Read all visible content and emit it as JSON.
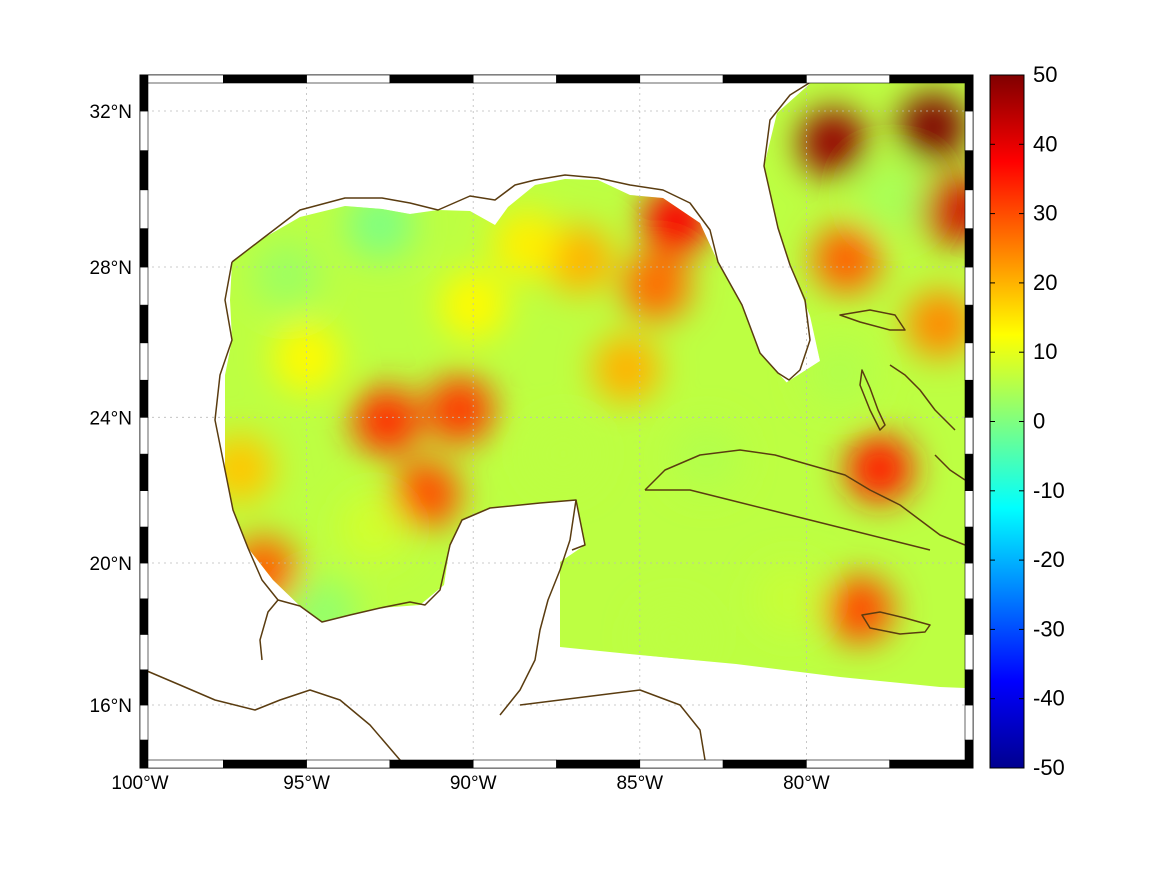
{
  "map": {
    "projection": "mercator",
    "lon_range": [
      -100,
      -75
    ],
    "lat_range": [
      14.2,
      32.9
    ],
    "grid": true,
    "frame_style": "black-white-ticks",
    "coastline_color": "#5a3c10",
    "lon_ticks": [
      {
        "value": -100,
        "label": "100°W"
      },
      {
        "value": -95,
        "label": "95°W"
      },
      {
        "value": -90,
        "label": "90°W"
      },
      {
        "value": -85,
        "label": "85°W"
      },
      {
        "value": -80,
        "label": "80°W"
      }
    ],
    "lat_ticks": [
      {
        "value": 16,
        "label": "16°N"
      },
      {
        "value": 20,
        "label": "20°N"
      },
      {
        "value": 24,
        "label": "24°N"
      },
      {
        "value": 28,
        "label": "28°N"
      },
      {
        "value": 32,
        "label": "32°N"
      }
    ]
  },
  "colorbar": {
    "colormap": "jet",
    "range": [
      -50,
      50
    ],
    "ticks": [
      {
        "value": 50,
        "label": "50"
      },
      {
        "value": 40,
        "label": "40"
      },
      {
        "value": 30,
        "label": "30"
      },
      {
        "value": 20,
        "label": "20"
      },
      {
        "value": 10,
        "label": "10"
      },
      {
        "value": 0,
        "label": "0"
      },
      {
        "value": -10,
        "label": "-10"
      },
      {
        "value": -20,
        "label": "-20"
      },
      {
        "value": -30,
        "label": "-30"
      },
      {
        "value": -40,
        "label": "-40"
      },
      {
        "value": -50,
        "label": "-50"
      }
    ]
  },
  "field": {
    "background_value": 6,
    "features": [
      {
        "lon": -76.2,
        "lat": 31.6,
        "value": 50
      },
      {
        "lon": -79.2,
        "lat": 31.2,
        "value": 48
      },
      {
        "lon": -75.6,
        "lat": 29.5,
        "value": 42
      },
      {
        "lon": -78.8,
        "lat": 28.2,
        "value": 28
      },
      {
        "lon": -77.4,
        "lat": 29.8,
        "value": 4
      },
      {
        "lon": -76.0,
        "lat": 26.5,
        "value": 24
      },
      {
        "lon": -83.9,
        "lat": 29.2,
        "value": 38
      },
      {
        "lon": -84.5,
        "lat": 27.5,
        "value": 27
      },
      {
        "lon": -86.8,
        "lat": 28.2,
        "value": 20
      },
      {
        "lon": -85.4,
        "lat": 25.3,
        "value": 20
      },
      {
        "lon": -88.4,
        "lat": 28.6,
        "value": 14
      },
      {
        "lon": -90.0,
        "lat": 27.0,
        "value": 13
      },
      {
        "lon": -92.8,
        "lat": 29.1,
        "value": 0
      },
      {
        "lon": -95.6,
        "lat": 27.8,
        "value": 3
      },
      {
        "lon": -95.0,
        "lat": 25.6,
        "value": 13
      },
      {
        "lon": -92.6,
        "lat": 23.9,
        "value": 33
      },
      {
        "lon": -90.4,
        "lat": 24.2,
        "value": 32
      },
      {
        "lon": -91.4,
        "lat": 21.9,
        "value": 30
      },
      {
        "lon": -97.0,
        "lat": 22.6,
        "value": 18
      },
      {
        "lon": -96.3,
        "lat": 19.8,
        "value": 28
      },
      {
        "lon": -94.5,
        "lat": 18.6,
        "value": 2
      },
      {
        "lon": -93.0,
        "lat": 21.0,
        "value": 8
      },
      {
        "lon": -87.3,
        "lat": 23.0,
        "value": 6
      },
      {
        "lon": -83.0,
        "lat": 22.9,
        "value": 5
      },
      {
        "lon": -79.0,
        "lat": 25.2,
        "value": 5
      },
      {
        "lon": -77.8,
        "lat": 22.6,
        "value": 35
      },
      {
        "lon": -78.4,
        "lat": 18.7,
        "value": 30
      },
      {
        "lon": -80.5,
        "lat": 19.0,
        "value": 7
      },
      {
        "lon": -84.0,
        "lat": 17.9,
        "value": 6
      }
    ]
  }
}
